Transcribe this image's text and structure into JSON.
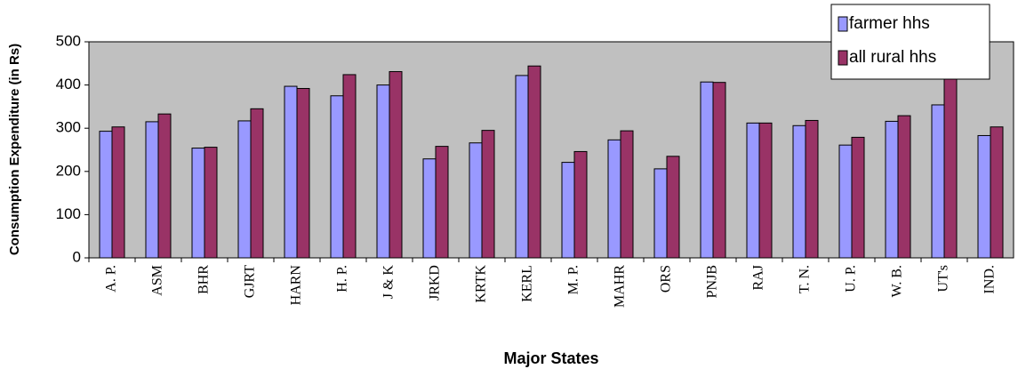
{
  "chart_data": {
    "type": "bar",
    "x_label": "Major States",
    "y_label": "Consumption Expenditure (in Rs)",
    "categories": [
      "A. P.",
      "ASM",
      "BHR",
      "GJRT",
      "HARN",
      "H. P.",
      "J & K",
      "JRKD",
      "KRTK",
      "KERL",
      "M. P.",
      "MAHR",
      "ORS",
      "PNJB",
      "RAJ",
      "T. N.",
      "U. P.",
      "W. B.",
      "UT's",
      "IND."
    ],
    "series": [
      {
        "name": "farmer hhs",
        "color": "#9999ff",
        "values": [
          293,
          315,
          254,
          317,
          397,
          375,
          400,
          229,
          266,
          422,
          221,
          273,
          206,
          407,
          312,
          306,
          261,
          316,
          354,
          283
        ]
      },
      {
        "name": "all rural hhs",
        "color": "#993366",
        "values": [
          303,
          333,
          256,
          345,
          392,
          424,
          431,
          258,
          295,
          444,
          246,
          294,
          235,
          406,
          312,
          318,
          279,
          329,
          440,
          303
        ]
      }
    ],
    "ylim": [
      0,
      500
    ],
    "yticks": [
      0,
      100,
      200,
      300,
      400,
      500
    ],
    "plot_background": "#c0c0c0",
    "legend": "top-right"
  }
}
